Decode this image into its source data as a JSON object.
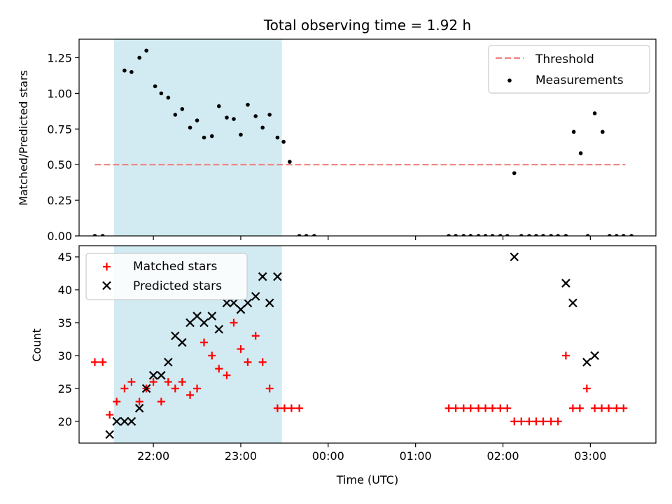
{
  "chart_data": {
    "title": "Total observing time = 1.92 h",
    "xlabel": "Time (UTC)",
    "x_unit": "hours UTC (continuing past midnight as 24+)",
    "xlim": [
      21.15,
      27.75
    ],
    "x_ticks": [
      {
        "value": 22,
        "label": "22:00"
      },
      {
        "value": 23,
        "label": "23:00"
      },
      {
        "value": 24,
        "label": "00:00"
      },
      {
        "value": 25,
        "label": "01:00"
      },
      {
        "value": 26,
        "label": "02:00"
      },
      {
        "value": 27,
        "label": "03:00"
      }
    ],
    "shaded_span": {
      "x0": 21.55,
      "x1": 23.47,
      "color": "#add8e6"
    },
    "top": {
      "type": "scatter",
      "ylabel": "Matched/Predicted stars",
      "ylim": [
        0,
        1.38
      ],
      "y_ticks": [
        {
          "value": 0.0,
          "label": "0.00"
        },
        {
          "value": 0.25,
          "label": "0.25"
        },
        {
          "value": 0.5,
          "label": "0.50"
        },
        {
          "value": 0.75,
          "label": "0.75"
        },
        {
          "value": 1.0,
          "label": "1.00"
        },
        {
          "value": 1.25,
          "label": "1.25"
        }
      ],
      "threshold": {
        "name": "Threshold",
        "y": 0.5,
        "x_start": 21.33,
        "x_end": 27.4,
        "color": "#f08080"
      },
      "series": [
        {
          "name": "Measurements",
          "color": "#000000",
          "points": [
            [
              21.33,
              0.0
            ],
            [
              21.42,
              0.0
            ],
            [
              21.67,
              1.16
            ],
            [
              21.75,
              1.15
            ],
            [
              21.84,
              1.25
            ],
            [
              21.92,
              1.3
            ],
            [
              22.02,
              1.05
            ],
            [
              22.09,
              1.0
            ],
            [
              22.17,
              0.97
            ],
            [
              22.25,
              0.85
            ],
            [
              22.33,
              0.89
            ],
            [
              22.42,
              0.76
            ],
            [
              22.5,
              0.81
            ],
            [
              22.58,
              0.69
            ],
            [
              22.67,
              0.7
            ],
            [
              22.75,
              0.91
            ],
            [
              22.84,
              0.83
            ],
            [
              22.92,
              0.82
            ],
            [
              23.0,
              0.71
            ],
            [
              23.08,
              0.92
            ],
            [
              23.17,
              0.84
            ],
            [
              23.25,
              0.76
            ],
            [
              23.33,
              0.85
            ],
            [
              23.42,
              0.69
            ],
            [
              23.49,
              0.66
            ],
            [
              23.56,
              0.52
            ],
            [
              23.67,
              0.0
            ],
            [
              23.75,
              0.0
            ],
            [
              23.84,
              0.0
            ],
            [
              25.38,
              0.0
            ],
            [
              25.46,
              0.0
            ],
            [
              25.55,
              0.0
            ],
            [
              25.63,
              0.0
            ],
            [
              25.72,
              0.0
            ],
            [
              25.8,
              0.0
            ],
            [
              25.88,
              0.0
            ],
            [
              25.97,
              0.0
            ],
            [
              26.05,
              0.0
            ],
            [
              26.13,
              0.44
            ],
            [
              26.21,
              0.0
            ],
            [
              26.3,
              0.0
            ],
            [
              26.38,
              0.0
            ],
            [
              26.46,
              0.0
            ],
            [
              26.55,
              0.0
            ],
            [
              26.63,
              0.0
            ],
            [
              26.72,
              0.0
            ],
            [
              26.81,
              0.73
            ],
            [
              26.89,
              0.58
            ],
            [
              26.97,
              0.0
            ],
            [
              27.05,
              0.86
            ],
            [
              27.14,
              0.73
            ],
            [
              27.22,
              0.0
            ],
            [
              27.3,
              0.0
            ],
            [
              27.38,
              0.0
            ],
            [
              27.47,
              0.0
            ]
          ]
        }
      ],
      "legend": {
        "placement": "upper right",
        "entries": [
          "Threshold",
          "Measurements"
        ]
      }
    },
    "bottom": {
      "type": "scatter",
      "ylabel": "Count",
      "ylim": [
        16.7,
        46.7
      ],
      "y_ticks": [
        {
          "value": 20,
          "label": "20"
        },
        {
          "value": 25,
          "label": "25"
        },
        {
          "value": 30,
          "label": "30"
        },
        {
          "value": 35,
          "label": "35"
        },
        {
          "value": 40,
          "label": "40"
        },
        {
          "value": 45,
          "label": "45"
        }
      ],
      "series": [
        {
          "name": "Matched stars",
          "color": "#ff0000",
          "marker": "plus",
          "points": [
            [
              21.33,
              29
            ],
            [
              21.42,
              29
            ],
            [
              21.5,
              21
            ],
            [
              21.58,
              23
            ],
            [
              21.67,
              25
            ],
            [
              21.75,
              26
            ],
            [
              21.84,
              23
            ],
            [
              21.92,
              25
            ],
            [
              22.0,
              26
            ],
            [
              22.09,
              23
            ],
            [
              22.17,
              26
            ],
            [
              22.25,
              25
            ],
            [
              22.33,
              26
            ],
            [
              22.42,
              24
            ],
            [
              22.5,
              25
            ],
            [
              22.58,
              32
            ],
            [
              22.67,
              30
            ],
            [
              22.75,
              28
            ],
            [
              22.84,
              27
            ],
            [
              22.92,
              35
            ],
            [
              23.0,
              31
            ],
            [
              23.08,
              29
            ],
            [
              23.17,
              33
            ],
            [
              23.25,
              29
            ],
            [
              23.33,
              25
            ],
            [
              23.42,
              22
            ],
            [
              23.5,
              22
            ],
            [
              23.58,
              22
            ],
            [
              23.67,
              22
            ],
            [
              25.38,
              22
            ],
            [
              25.46,
              22
            ],
            [
              25.55,
              22
            ],
            [
              25.63,
              22
            ],
            [
              25.72,
              22
            ],
            [
              25.8,
              22
            ],
            [
              25.88,
              22
            ],
            [
              25.97,
              22
            ],
            [
              26.05,
              22
            ],
            [
              26.13,
              20
            ],
            [
              26.21,
              20
            ],
            [
              26.3,
              20
            ],
            [
              26.38,
              20
            ],
            [
              26.46,
              20
            ],
            [
              26.55,
              20
            ],
            [
              26.63,
              20
            ],
            [
              26.72,
              30
            ],
            [
              26.8,
              22
            ],
            [
              26.88,
              22
            ],
            [
              26.96,
              25
            ],
            [
              27.05,
              22
            ],
            [
              27.13,
              22
            ],
            [
              27.21,
              22
            ],
            [
              27.3,
              22
            ],
            [
              27.38,
              22
            ]
          ]
        },
        {
          "name": "Predicted stars",
          "color": "#000000",
          "marker": "x",
          "points": [
            [
              21.5,
              18
            ],
            [
              21.58,
              20
            ],
            [
              21.67,
              20
            ],
            [
              21.75,
              20
            ],
            [
              21.84,
              22
            ],
            [
              21.92,
              25
            ],
            [
              22.0,
              27
            ],
            [
              22.09,
              27
            ],
            [
              22.17,
              29
            ],
            [
              22.25,
              33
            ],
            [
              22.33,
              32
            ],
            [
              22.42,
              35
            ],
            [
              22.5,
              36
            ],
            [
              22.58,
              35
            ],
            [
              22.67,
              36
            ],
            [
              22.75,
              34
            ],
            [
              22.84,
              38
            ],
            [
              22.92,
              38
            ],
            [
              23.0,
              37
            ],
            [
              23.08,
              38
            ],
            [
              23.17,
              39
            ],
            [
              23.25,
              42
            ],
            [
              23.33,
              38
            ],
            [
              23.42,
              42
            ],
            [
              26.13,
              45
            ],
            [
              26.72,
              41
            ],
            [
              26.8,
              38
            ],
            [
              26.96,
              29
            ],
            [
              27.05,
              30
            ]
          ]
        }
      ],
      "legend": {
        "placement": "upper left",
        "entries": [
          "Matched stars",
          "Predicted stars"
        ]
      }
    }
  }
}
